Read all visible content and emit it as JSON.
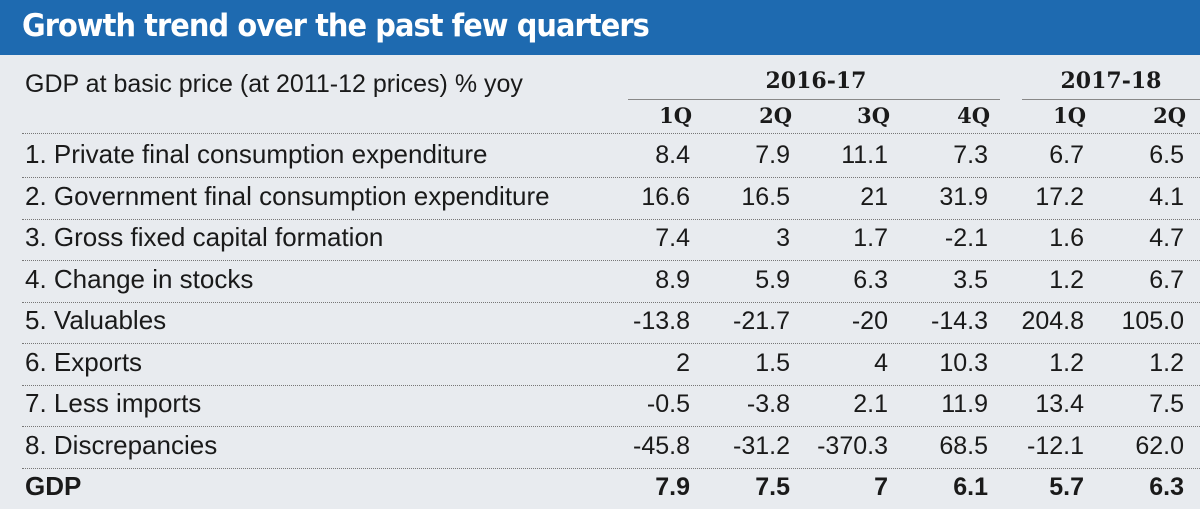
{
  "title": "Growth trend over the past few quarters",
  "subtitle": "GDP at basic price (at 2011-12 prices)  % yoy",
  "years": [
    "2016-17",
    "2017-18"
  ],
  "quarters": [
    "1Q",
    "2Q",
    "3Q",
    "4Q",
    "1Q",
    "2Q"
  ],
  "rows": [
    {
      "label": "1. Private final consumption expenditure",
      "values": [
        "8.4",
        "7.9",
        "11.1",
        "7.3",
        "6.7",
        "6.5"
      ]
    },
    {
      "label": "2. Government final consumption expenditure",
      "values": [
        "16.6",
        "16.5",
        "21",
        "31.9",
        "17.2",
        "4.1"
      ]
    },
    {
      "label": "3. Gross fixed capital formation",
      "values": [
        "7.4",
        "3",
        "1.7",
        "-2.1",
        "1.6",
        "4.7"
      ]
    },
    {
      "label": "4. Change in stocks",
      "values": [
        "8.9",
        "5.9",
        "6.3",
        "3.5",
        "1.2",
        "6.7"
      ]
    },
    {
      "label": "5. Valuables",
      "values": [
        "-13.8",
        "-21.7",
        "-20",
        "-14.3",
        "204.8",
        "105.0"
      ]
    },
    {
      "label": "6. Exports",
      "values": [
        "2",
        "1.5",
        "4",
        "10.3",
        "1.2",
        "1.2"
      ]
    },
    {
      "label": "7. Less imports",
      "values": [
        "-0.5",
        "-3.8",
        "2.1",
        "11.9",
        "13.4",
        "7.5"
      ]
    },
    {
      "label": "8. Discrepancies",
      "values": [
        "-45.8",
        "-31.2",
        "-370.3",
        "68.5",
        "-12.1",
        "62.0"
      ]
    },
    {
      "label": "GDP",
      "values": [
        "7.9",
        "7.5",
        "7",
        "6.1",
        "5.7",
        "6.3"
      ]
    }
  ]
}
